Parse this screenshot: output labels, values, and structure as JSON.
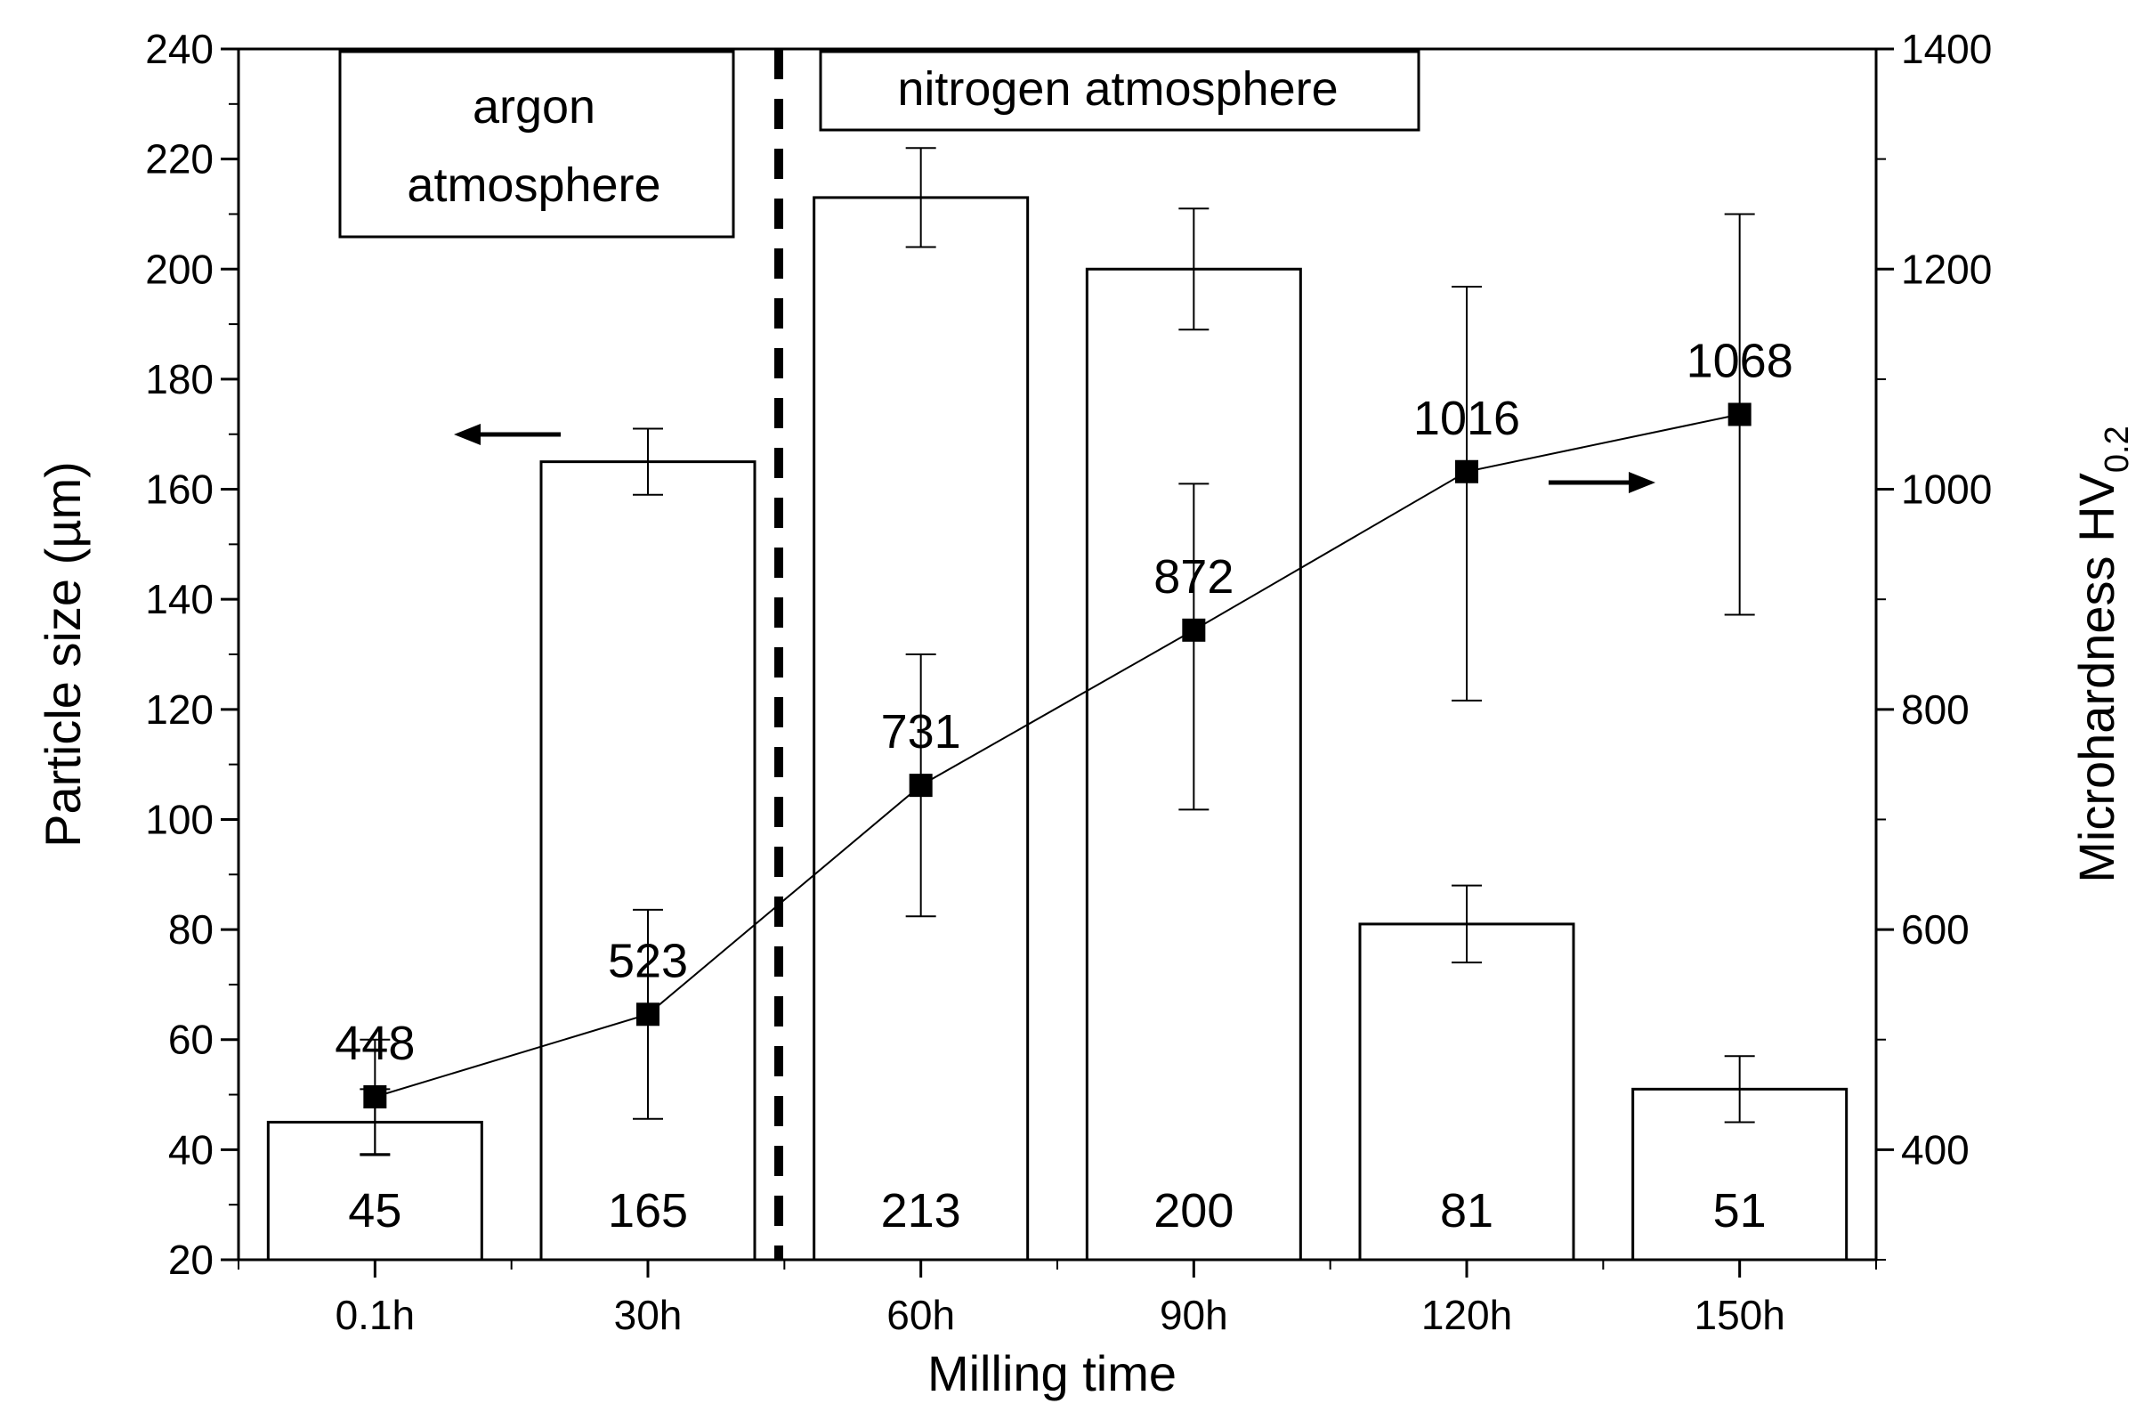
{
  "chart_data": {
    "type": "bar",
    "xlabel": "Milling time",
    "ylabel": "Particle size (µm)",
    "y2label_main": "Microhardness HV",
    "y2label_sub": "0.2",
    "categories": [
      "0.1h",
      "30h",
      "60h",
      "90h",
      "120h",
      "150h"
    ],
    "ylim": [
      20,
      240
    ],
    "yticks": [
      20,
      40,
      60,
      80,
      100,
      120,
      140,
      160,
      180,
      200,
      220,
      240
    ],
    "y2lim": [
      300,
      1400
    ],
    "y2ticks": [
      400,
      600,
      800,
      1000,
      1200,
      1400
    ],
    "series": [
      {
        "name": "Particle size",
        "type": "bar",
        "axis": "left",
        "values": [
          45,
          165,
          213,
          200,
          81,
          51
        ],
        "labels": [
          "45",
          "165",
          "213",
          "200",
          "81",
          "51"
        ],
        "error_low": [
          39,
          159,
          204,
          189,
          74,
          45
        ],
        "error_high": [
          51,
          171,
          222,
          211,
          88,
          57
        ]
      },
      {
        "name": "Microhardness",
        "type": "line",
        "axis": "right",
        "values": [
          448,
          523,
          731,
          872,
          1016,
          1068
        ],
        "labels": [
          "448",
          "523",
          "731",
          "872",
          "1016",
          "1068"
        ],
        "error_low": [
          396,
          428,
          612,
          709,
          808,
          886
        ],
        "error_high": [
          500,
          618,
          850,
          1005,
          1184,
          1250
        ]
      }
    ],
    "annotations": [
      {
        "name": "argon",
        "lines": [
          "argon",
          "atmosphere"
        ]
      },
      {
        "name": "nitrogen",
        "lines": [
          "nitrogen atmosphere"
        ]
      }
    ]
  }
}
